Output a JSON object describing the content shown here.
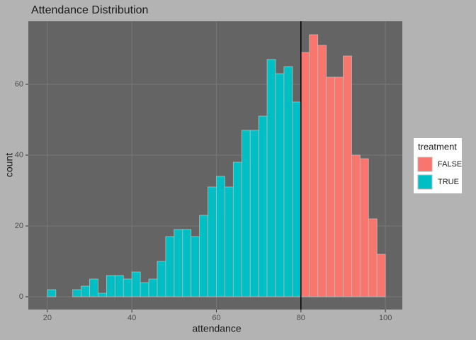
{
  "chart_data": {
    "type": "histogram",
    "title": "Attendance Distribution",
    "x_label": "attendance",
    "y_label": "count",
    "legend_title": "treatment",
    "bins": [
      20,
      22,
      24,
      26,
      28,
      30,
      32,
      34,
      36,
      38,
      40,
      42,
      44,
      46,
      48,
      50,
      52,
      54,
      56,
      58,
      60,
      62,
      64,
      66,
      68,
      70,
      72,
      74,
      76,
      78,
      80,
      82,
      84,
      86,
      88,
      90,
      92,
      94,
      96,
      98,
      100
    ],
    "series": [
      {
        "name": "FALSE",
        "color": "#F8766D",
        "values": [
          null,
          null,
          null,
          null,
          null,
          null,
          null,
          null,
          null,
          null,
          null,
          null,
          null,
          null,
          null,
          null,
          null,
          null,
          null,
          null,
          null,
          null,
          null,
          null,
          null,
          null,
          null,
          null,
          null,
          null,
          69,
          74,
          71,
          62,
          62,
          68,
          40,
          39,
          22,
          12
        ]
      },
      {
        "name": "TRUE",
        "color": "#00BFC4",
        "values": [
          2,
          0,
          0,
          2,
          3,
          5,
          1,
          6,
          6,
          5,
          7,
          4,
          5,
          10,
          17,
          19,
          19,
          17,
          23,
          31,
          34,
          31,
          38,
          47,
          47,
          51,
          67,
          63,
          65,
          55,
          null,
          null,
          null,
          null,
          null,
          null,
          null,
          null,
          null,
          null
        ]
      }
    ],
    "vline": 80,
    "xlim": [
      15.5,
      104
    ],
    "ylim": [
      -3.6,
      77.8
    ],
    "xticks": [
      20,
      40,
      60,
      80,
      100
    ],
    "yticks": [
      0,
      20,
      40,
      60
    ],
    "grid": true,
    "legend_position": "right"
  }
}
